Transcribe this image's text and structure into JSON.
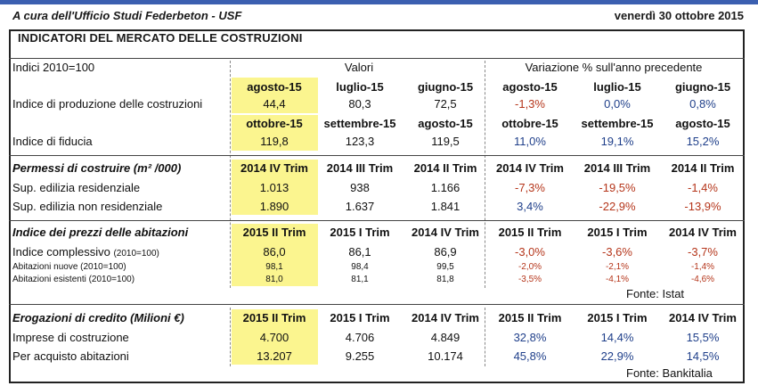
{
  "header": {
    "left": "A cura dell'Ufficio Studi Federbeton - USF",
    "date": "venerdì 30 ottobre 2015"
  },
  "title": "INDICATORI DEL MERCATO DELLE COSTRUZIONI",
  "top": {
    "indici_label": "Indici 2010=100",
    "valori_label": "Valori",
    "variazione_label": "Variazione % sull'anno precedente"
  },
  "produzione": {
    "cols": [
      "agosto-15",
      "luglio-15",
      "giugno-15",
      "agosto-15",
      "luglio-15",
      "giugno-15"
    ],
    "label": "Indice di produzione delle costruzioni",
    "values": [
      "44,4",
      "80,3",
      "72,5",
      "-1,3%",
      "0,0%",
      "0,8%"
    ]
  },
  "fiducia": {
    "cols": [
      "ottobre-15",
      "settembre-15",
      "agosto-15",
      "ottobre-15",
      "settembre-15",
      "agosto-15"
    ],
    "label": "Indice di fiducia",
    "values": [
      "119,8",
      "123,3",
      "119,5",
      "11,0%",
      "19,1%",
      "15,2%"
    ]
  },
  "permessi": {
    "heading": "Permessi di costruire  (m² /000)",
    "cols": [
      "2014 IV Trim",
      "2014 III Trim",
      "2014 II Trim",
      "2014 IV Trim",
      "2014 III Trim",
      "2014 II Trim"
    ],
    "rows": [
      {
        "label": "Sup. edilizia residenziale",
        "values": [
          "1.013",
          "938",
          "1.166",
          "-7,3%",
          "-19,5%",
          "-1,4%"
        ]
      },
      {
        "label": "Sup. edilizia non residenziale",
        "values": [
          "1.890",
          "1.637",
          "1.841",
          "3,4%",
          "-22,9%",
          "-13,9%"
        ]
      }
    ]
  },
  "prezzi": {
    "heading": "Indice dei prezzi delle abitazioni",
    "cols": [
      "2015 II Trim",
      "2015 I Trim",
      "2014 IV Trim",
      "2015 II Trim",
      "2015 I Trim",
      "2014 IV Trim"
    ],
    "rows": [
      {
        "label": "Indice complessivo",
        "note": "(2010=100)",
        "values": [
          "86,0",
          "86,1",
          "86,9",
          "-3,0%",
          "-3,6%",
          "-3,7%"
        ]
      },
      {
        "label": "Abitazioni nuove (2010=100)",
        "values": [
          "98,1",
          "98,4",
          "99,5",
          "-2,0%",
          "-2,1%",
          "-1,4%"
        ]
      },
      {
        "label": "Abitazioni esistenti (2010=100)",
        "values": [
          "81,0",
          "81,1",
          "81,8",
          "-3,5%",
          "-4,1%",
          "-4,6%"
        ]
      }
    ],
    "source": "Fonte:  Istat"
  },
  "credito": {
    "heading": "Erogazioni di credito (Milioni €)",
    "cols": [
      "2015 II Trim",
      "2015 I Trim",
      "2014 IV Trim",
      "2015 II Trim",
      "2015 I Trim",
      "2014 IV Trim"
    ],
    "rows": [
      {
        "label": "Imprese di costruzione",
        "values": [
          "4.700",
          "4.706",
          "4.849",
          "32,8%",
          "14,4%",
          "15,5%"
        ]
      },
      {
        "label": "Per acquisto abitazioni",
        "values": [
          "13.207",
          "9.255",
          "10.174",
          "45,8%",
          "22,9%",
          "14,5%"
        ]
      }
    ],
    "source": "Fonte:  Bankitalia"
  },
  "colors": {
    "highlight": "#fbf58f",
    "negative": "#b5361b",
    "positive": "#1f3f8a",
    "topbar": "#3b5fb0"
  }
}
